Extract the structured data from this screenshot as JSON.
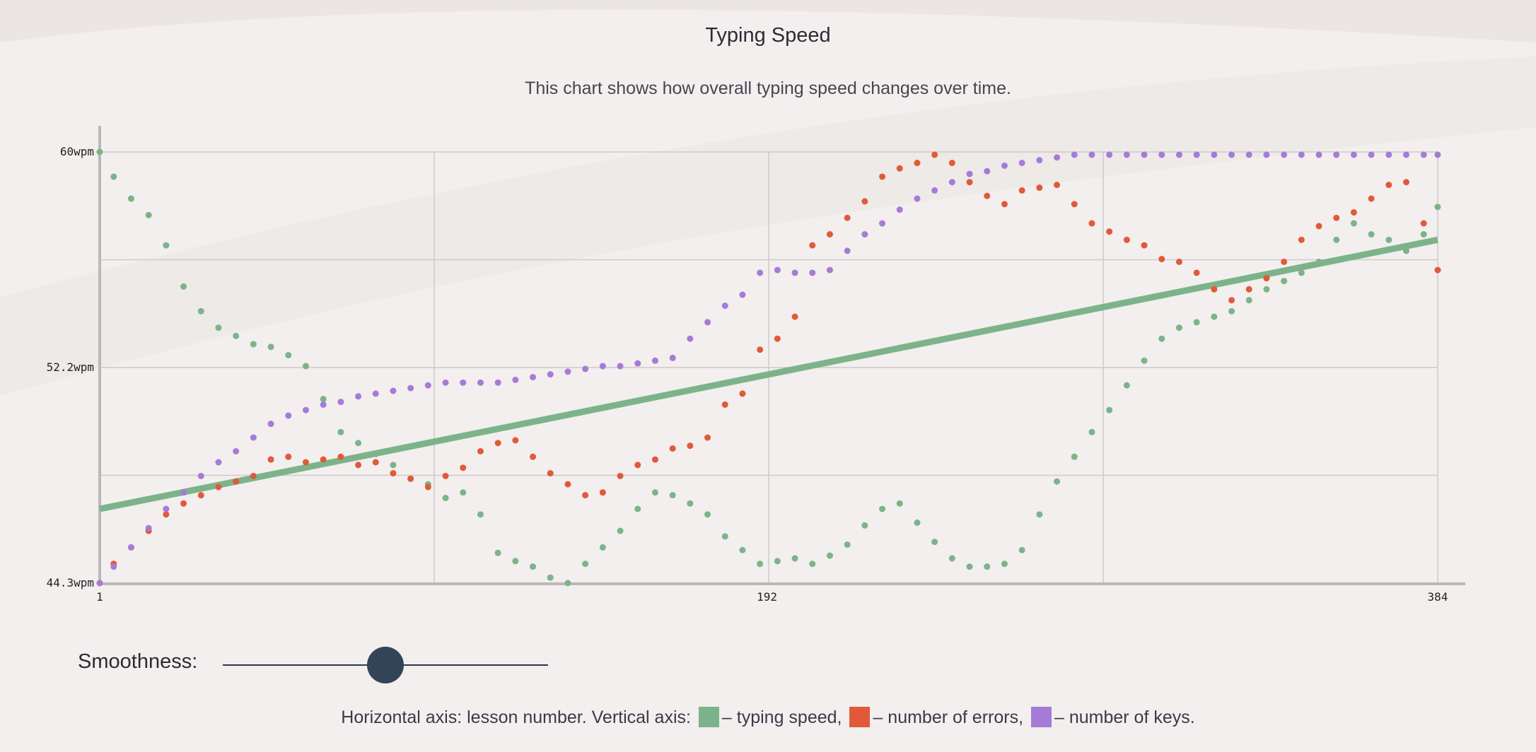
{
  "chart_title": "Typing Speed",
  "chart_description": "This chart shows how overall typing speed changes over time.",
  "smoothness": {
    "label": "Smoothness:",
    "value": 0.5
  },
  "legend": {
    "prefix": "Horizontal axis: lesson number. Vertical axis:",
    "items": [
      {
        "text": "– typing speed,",
        "color": "#7db38a"
      },
      {
        "text": "– number of errors,",
        "color": "#e05a3a"
      },
      {
        "text": "– number of keys.",
        "color": "#a67bd6"
      }
    ]
  },
  "chart_data": {
    "type": "scatter",
    "title": "Typing Speed",
    "subtitle": "This chart shows how overall typing speed changes over time.",
    "xlabel": "lesson number",
    "ylabel": "",
    "x_range": [
      1,
      384
    ],
    "y_range": [
      44.3,
      60
    ],
    "x_ticks": [
      "1",
      "192",
      "384"
    ],
    "y_ticks": [
      "60wpm",
      "52.2wpm",
      "44.3wpm"
    ],
    "grid": true,
    "series": [
      {
        "name": "typing speed",
        "color": "#7db38a",
        "points": [
          [
            1,
            60
          ],
          [
            5,
            59.1
          ],
          [
            10,
            58.3
          ],
          [
            15,
            57.7
          ],
          [
            20,
            56.6
          ],
          [
            25,
            55.1
          ],
          [
            30,
            54.2
          ],
          [
            35,
            53.6
          ],
          [
            40,
            53.3
          ],
          [
            45,
            53.0
          ],
          [
            50,
            52.9
          ],
          [
            55,
            52.6
          ],
          [
            60,
            52.2
          ],
          [
            65,
            51.0
          ],
          [
            70,
            49.8
          ],
          [
            75,
            49.4
          ],
          [
            80,
            49.0
          ],
          [
            85,
            48.6
          ],
          [
            90,
            48.1
          ],
          [
            95,
            47.9
          ],
          [
            100,
            47.4
          ],
          [
            105,
            47.6
          ],
          [
            110,
            46.8
          ],
          [
            115,
            45.4
          ],
          [
            120,
            45.1
          ],
          [
            125,
            44.9
          ],
          [
            130,
            44.5
          ],
          [
            135,
            44.3
          ],
          [
            140,
            45.0
          ],
          [
            145,
            45.6
          ],
          [
            150,
            46.2
          ],
          [
            155,
            47.0
          ],
          [
            160,
            47.6
          ],
          [
            165,
            47.5
          ],
          [
            170,
            47.2
          ],
          [
            175,
            46.8
          ],
          [
            180,
            46.0
          ],
          [
            185,
            45.5
          ],
          [
            190,
            45.0
          ],
          [
            195,
            45.1
          ],
          [
            200,
            45.2
          ],
          [
            205,
            45.0
          ],
          [
            210,
            45.3
          ],
          [
            215,
            45.7
          ],
          [
            220,
            46.4
          ],
          [
            225,
            47.0
          ],
          [
            230,
            47.2
          ],
          [
            235,
            46.5
          ],
          [
            240,
            45.8
          ],
          [
            245,
            45.2
          ],
          [
            250,
            44.9
          ],
          [
            255,
            44.9
          ],
          [
            260,
            45.0
          ],
          [
            265,
            45.5
          ],
          [
            270,
            46.8
          ],
          [
            275,
            48.0
          ],
          [
            280,
            48.9
          ],
          [
            285,
            49.8
          ],
          [
            290,
            50.6
          ],
          [
            295,
            51.5
          ],
          [
            300,
            52.4
          ],
          [
            305,
            53.2
          ],
          [
            310,
            53.6
          ],
          [
            315,
            53.8
          ],
          [
            320,
            54.0
          ],
          [
            325,
            54.2
          ],
          [
            330,
            54.6
          ],
          [
            335,
            55.0
          ],
          [
            340,
            55.3
          ],
          [
            345,
            55.6
          ],
          [
            350,
            56.0
          ],
          [
            355,
            56.8
          ],
          [
            360,
            57.4
          ],
          [
            365,
            57.0
          ],
          [
            370,
            56.8
          ],
          [
            375,
            56.4
          ],
          [
            380,
            57.0
          ],
          [
            384,
            58.0
          ]
        ]
      },
      {
        "name": "number of errors",
        "color": "#e05a3a",
        "points": [
          [
            1,
            44.3
          ],
          [
            5,
            45.0
          ],
          [
            10,
            45.6
          ],
          [
            15,
            46.2
          ],
          [
            20,
            46.8
          ],
          [
            25,
            47.2
          ],
          [
            30,
            47.5
          ],
          [
            35,
            47.8
          ],
          [
            40,
            48.0
          ],
          [
            45,
            48.2
          ],
          [
            50,
            48.8
          ],
          [
            55,
            48.9
          ],
          [
            60,
            48.7
          ],
          [
            65,
            48.8
          ],
          [
            70,
            48.9
          ],
          [
            75,
            48.6
          ],
          [
            80,
            48.7
          ],
          [
            85,
            48.3
          ],
          [
            90,
            48.1
          ],
          [
            95,
            47.8
          ],
          [
            100,
            48.2
          ],
          [
            105,
            48.5
          ],
          [
            110,
            49.1
          ],
          [
            115,
            49.4
          ],
          [
            120,
            49.5
          ],
          [
            125,
            48.9
          ],
          [
            130,
            48.3
          ],
          [
            135,
            47.9
          ],
          [
            140,
            47.5
          ],
          [
            145,
            47.6
          ],
          [
            150,
            48.2
          ],
          [
            155,
            48.6
          ],
          [
            160,
            48.8
          ],
          [
            165,
            49.2
          ],
          [
            170,
            49.3
          ],
          [
            175,
            49.6
          ],
          [
            180,
            50.8
          ],
          [
            185,
            51.2
          ],
          [
            190,
            52.8
          ],
          [
            195,
            53.2
          ],
          [
            200,
            54.0
          ],
          [
            205,
            56.6
          ],
          [
            210,
            57.0
          ],
          [
            215,
            57.6
          ],
          [
            220,
            58.2
          ],
          [
            225,
            59.1
          ],
          [
            230,
            59.4
          ],
          [
            235,
            59.6
          ],
          [
            240,
            59.9
          ],
          [
            245,
            59.6
          ],
          [
            250,
            58.9
          ],
          [
            255,
            58.4
          ],
          [
            260,
            58.1
          ],
          [
            265,
            58.6
          ],
          [
            270,
            58.7
          ],
          [
            275,
            58.8
          ],
          [
            280,
            58.1
          ],
          [
            285,
            57.4
          ],
          [
            290,
            57.1
          ],
          [
            295,
            56.8
          ],
          [
            300,
            56.6
          ],
          [
            305,
            56.1
          ],
          [
            310,
            56.0
          ],
          [
            315,
            55.6
          ],
          [
            320,
            55.0
          ],
          [
            325,
            54.6
          ],
          [
            330,
            55.0
          ],
          [
            335,
            55.4
          ],
          [
            340,
            56.0
          ],
          [
            345,
            56.8
          ],
          [
            350,
            57.3
          ],
          [
            355,
            57.6
          ],
          [
            360,
            57.8
          ],
          [
            365,
            58.3
          ],
          [
            370,
            58.8
          ],
          [
            375,
            58.9
          ],
          [
            380,
            57.4
          ],
          [
            384,
            55.7
          ]
        ]
      },
      {
        "name": "number of keys",
        "color": "#a67bd6",
        "points": [
          [
            1,
            44.3
          ],
          [
            5,
            44.9
          ],
          [
            10,
            45.6
          ],
          [
            15,
            46.3
          ],
          [
            20,
            47.0
          ],
          [
            25,
            47.6
          ],
          [
            30,
            48.2
          ],
          [
            35,
            48.7
          ],
          [
            40,
            49.1
          ],
          [
            45,
            49.6
          ],
          [
            50,
            50.1
          ],
          [
            55,
            50.4
          ],
          [
            60,
            50.6
          ],
          [
            65,
            50.8
          ],
          [
            70,
            50.9
          ],
          [
            75,
            51.1
          ],
          [
            80,
            51.2
          ],
          [
            85,
            51.3
          ],
          [
            90,
            51.4
          ],
          [
            95,
            51.5
          ],
          [
            100,
            51.6
          ],
          [
            105,
            51.6
          ],
          [
            110,
            51.6
          ],
          [
            115,
            51.6
          ],
          [
            120,
            51.7
          ],
          [
            125,
            51.8
          ],
          [
            130,
            51.9
          ],
          [
            135,
            52.0
          ],
          [
            140,
            52.1
          ],
          [
            145,
            52.2
          ],
          [
            150,
            52.2
          ],
          [
            155,
            52.3
          ],
          [
            160,
            52.4
          ],
          [
            165,
            52.5
          ],
          [
            170,
            53.2
          ],
          [
            175,
            53.8
          ],
          [
            180,
            54.4
          ],
          [
            185,
            54.8
          ],
          [
            190,
            55.6
          ],
          [
            195,
            55.7
          ],
          [
            200,
            55.6
          ],
          [
            205,
            55.6
          ],
          [
            210,
            55.7
          ],
          [
            215,
            56.4
          ],
          [
            220,
            57.0
          ],
          [
            225,
            57.4
          ],
          [
            230,
            57.9
          ],
          [
            235,
            58.3
          ],
          [
            240,
            58.6
          ],
          [
            245,
            58.9
          ],
          [
            250,
            59.2
          ],
          [
            255,
            59.3
          ],
          [
            260,
            59.5
          ],
          [
            265,
            59.6
          ],
          [
            270,
            59.7
          ],
          [
            275,
            59.8
          ],
          [
            280,
            59.9
          ],
          [
            285,
            59.9
          ],
          [
            290,
            59.9
          ],
          [
            295,
            59.9
          ],
          [
            300,
            59.9
          ],
          [
            305,
            59.9
          ],
          [
            310,
            59.9
          ],
          [
            315,
            59.9
          ],
          [
            320,
            59.9
          ],
          [
            325,
            59.9
          ],
          [
            330,
            59.9
          ],
          [
            335,
            59.9
          ],
          [
            340,
            59.9
          ],
          [
            345,
            59.9
          ],
          [
            350,
            59.9
          ],
          [
            355,
            59.9
          ],
          [
            360,
            59.9
          ],
          [
            365,
            59.9
          ],
          [
            370,
            59.9
          ],
          [
            375,
            59.9
          ],
          [
            380,
            59.9
          ],
          [
            384,
            59.9
          ]
        ]
      }
    ],
    "trendline": {
      "color": "#7db38a",
      "from": [
        1,
        47.0
      ],
      "to": [
        384,
        56.8
      ]
    }
  }
}
